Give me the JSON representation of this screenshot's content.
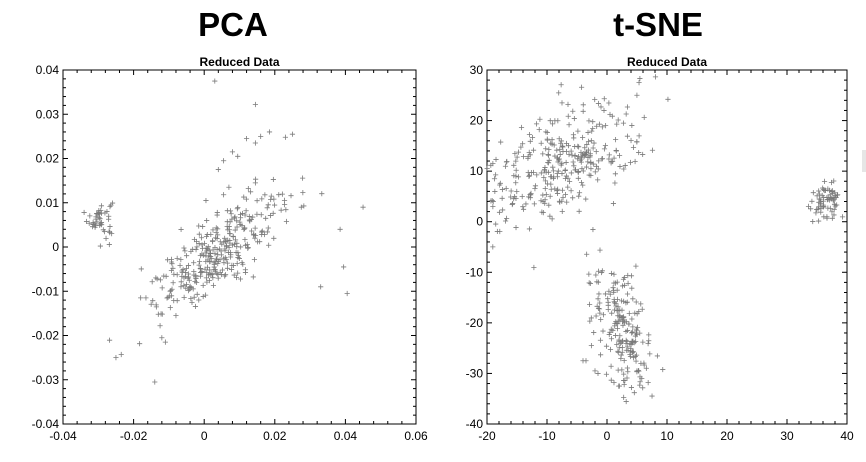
{
  "chart_data": [
    {
      "type": "scatter",
      "title": "PCA",
      "subtitle": "Reduced Data",
      "xlabel": "",
      "ylabel": "",
      "xlim": [
        -0.04,
        0.06
      ],
      "ylim": [
        -0.04,
        0.04
      ],
      "xticks": [
        -0.04,
        -0.02,
        0,
        0.02,
        0.04,
        0.06
      ],
      "xtick_labels": [
        "-0.04",
        "-0.02",
        "0",
        "0.02",
        "0.04",
        "0.06"
      ],
      "yticks": [
        -0.04,
        -0.03,
        -0.02,
        -0.01,
        0,
        0.01,
        0.02,
        0.03,
        0.04
      ],
      "ytick_labels": [
        "-0.04",
        "-0.03",
        "-0.02",
        "-0.01",
        "0",
        "0.01",
        "0.02",
        "0.03",
        "0.04"
      ],
      "marker": "+",
      "marker_color": "#7a7a7a",
      "grid": false,
      "clusters": [
        {
          "center": [
            -0.0295,
            0.0065
          ],
          "spread": [
            0.0018,
            0.0022
          ],
          "angle_deg": 0,
          "n": 45
        },
        {
          "center": [
            0.004,
            -0.001
          ],
          "spread": [
            0.0105,
            0.0034
          ],
          "angle_deg": 35,
          "n": 320
        }
      ],
      "points": [
        [
          0.003,
          0.0375
        ],
        [
          0.0145,
          0.0322
        ],
        [
          -0.025,
          -0.025
        ],
        [
          -0.0235,
          -0.0243
        ],
        [
          -0.014,
          -0.0305
        ],
        [
          -0.012,
          -0.0205
        ],
        [
          -0.011,
          -0.0215
        ],
        [
          -0.0165,
          -0.0115
        ],
        [
          -0.018,
          -0.0115
        ],
        [
          -0.013,
          -0.0152
        ],
        [
          -0.0125,
          -0.0178
        ],
        [
          -0.008,
          -0.0155
        ],
        [
          0.033,
          -0.009
        ],
        [
          0.0395,
          -0.0045
        ],
        [
          0.0405,
          -0.0105
        ],
        [
          0.0385,
          0.004
        ],
        [
          0.045,
          0.009
        ],
        [
          0.0275,
          0.009
        ],
        [
          0.025,
          0.0255
        ],
        [
          0.023,
          0.0248
        ],
        [
          0.0185,
          0.026
        ],
        [
          0.016,
          0.025
        ],
        [
          0.0145,
          0.0235
        ],
        [
          0.012,
          0.0245
        ],
        [
          0.008,
          0.0215
        ],
        [
          0.0095,
          0.0205
        ],
        [
          0.0055,
          0.0195
        ],
        [
          0.004,
          0.0175
        ],
        [
          0.007,
          0.0135
        ],
        [
          0.0055,
          0.0118
        ],
        [
          0.0005,
          0.0105
        ],
        [
          0.0145,
          0.0145
        ],
        [
          0.0125,
          0.0132
        ],
        [
          0.019,
          0.0115
        ]
      ]
    },
    {
      "type": "scatter",
      "title": "t-SNE",
      "subtitle": "Reduced Data",
      "xlabel": "",
      "ylabel": "",
      "xlim": [
        -20,
        40
      ],
      "ylim": [
        -40,
        30
      ],
      "xticks": [
        -20,
        -10,
        0,
        10,
        20,
        30,
        40
      ],
      "xtick_labels": [
        "-20",
        "-10",
        "0",
        "10",
        "20",
        "30",
        "40"
      ],
      "yticks": [
        -40,
        -30,
        -20,
        -10,
        0,
        10,
        20,
        30
      ],
      "ytick_labels": [
        "-40",
        "-30",
        "-20",
        "-10",
        "0",
        "10",
        "20",
        "30"
      ],
      "marker": "+",
      "marker_color": "#7a7a7a",
      "grid": false,
      "clusters": [
        {
          "center": [
            -8.5,
            11
          ],
          "spread": [
            8.5,
            4.5
          ],
          "angle_deg": 38,
          "n": 330
        },
        {
          "center": [
            36.5,
            4
          ],
          "spread": [
            1.4,
            1.6
          ],
          "angle_deg": 0,
          "n": 70
        },
        {
          "center": [
            2.2,
            -21.5
          ],
          "spread": [
            2.2,
            6.5
          ],
          "angle_deg": 10,
          "n": 210
        }
      ],
      "points": [
        [
          -7.5,
          23.5
        ],
        [
          -6.5,
          23.2
        ],
        [
          -1,
          22.7
        ],
        [
          -0.5,
          22
        ],
        [
          0.5,
          21.2
        ],
        [
          -3.5,
          -27.5
        ],
        [
          -4,
          -27.5
        ],
        [
          -2,
          -29.5
        ],
        [
          -1.5,
          -30
        ]
      ]
    }
  ]
}
